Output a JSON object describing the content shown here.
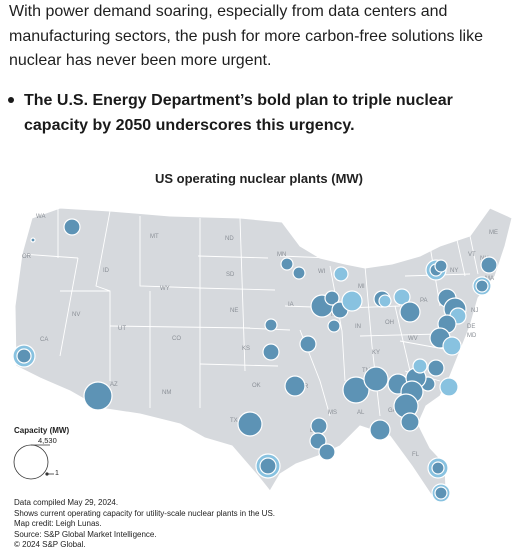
{
  "article": {
    "paragraph": "With power demand soaring, especially from data centers and manufacturing sectors, the push for more carbon-free solutions like nuclear has never been more urgent.",
    "bullet": "The U.S. Energy Department’s bold plan to triple nuclear capacity by 2050 underscores this urgency."
  },
  "map": {
    "title": "US operating nuclear plants (MW)",
    "legend": {
      "title": "Capacity (MW)",
      "max_label": "4,530",
      "min_label": "1"
    },
    "credits": [
      "Data compiled May 29, 2024.",
      "Shows current operating capacity for utility-scale nuclear plants in the US.",
      "Map credit: Leigh Lunas.",
      "Source: S&P Global Market Intelligence.",
      "© 2024 S&P Global."
    ],
    "state_labels": [
      "WA",
      "OR",
      "CA",
      "NV",
      "ID",
      "MT",
      "WY",
      "UT",
      "AZ",
      "CO",
      "NM",
      "ND",
      "SD",
      "NE",
      "KS",
      "OK",
      "TX",
      "MN",
      "IA",
      "MO",
      "AR",
      "LA",
      "WI",
      "IL",
      "MI",
      "IN",
      "OH",
      "KY",
      "TN",
      "MS",
      "AL",
      "GA",
      "FL",
      "SC",
      "NC",
      "VA",
      "WV",
      "PA",
      "NY",
      "VT",
      "NH",
      "ME",
      "MA",
      "NJ",
      "DE",
      "MD"
    ],
    "colors": {
      "land": "#d6d9dd",
      "border": "#ffffff",
      "bubble": "#5d93b5",
      "bubble_light": "#88c2e0",
      "bubble_edge": "#ffffff"
    }
  }
}
